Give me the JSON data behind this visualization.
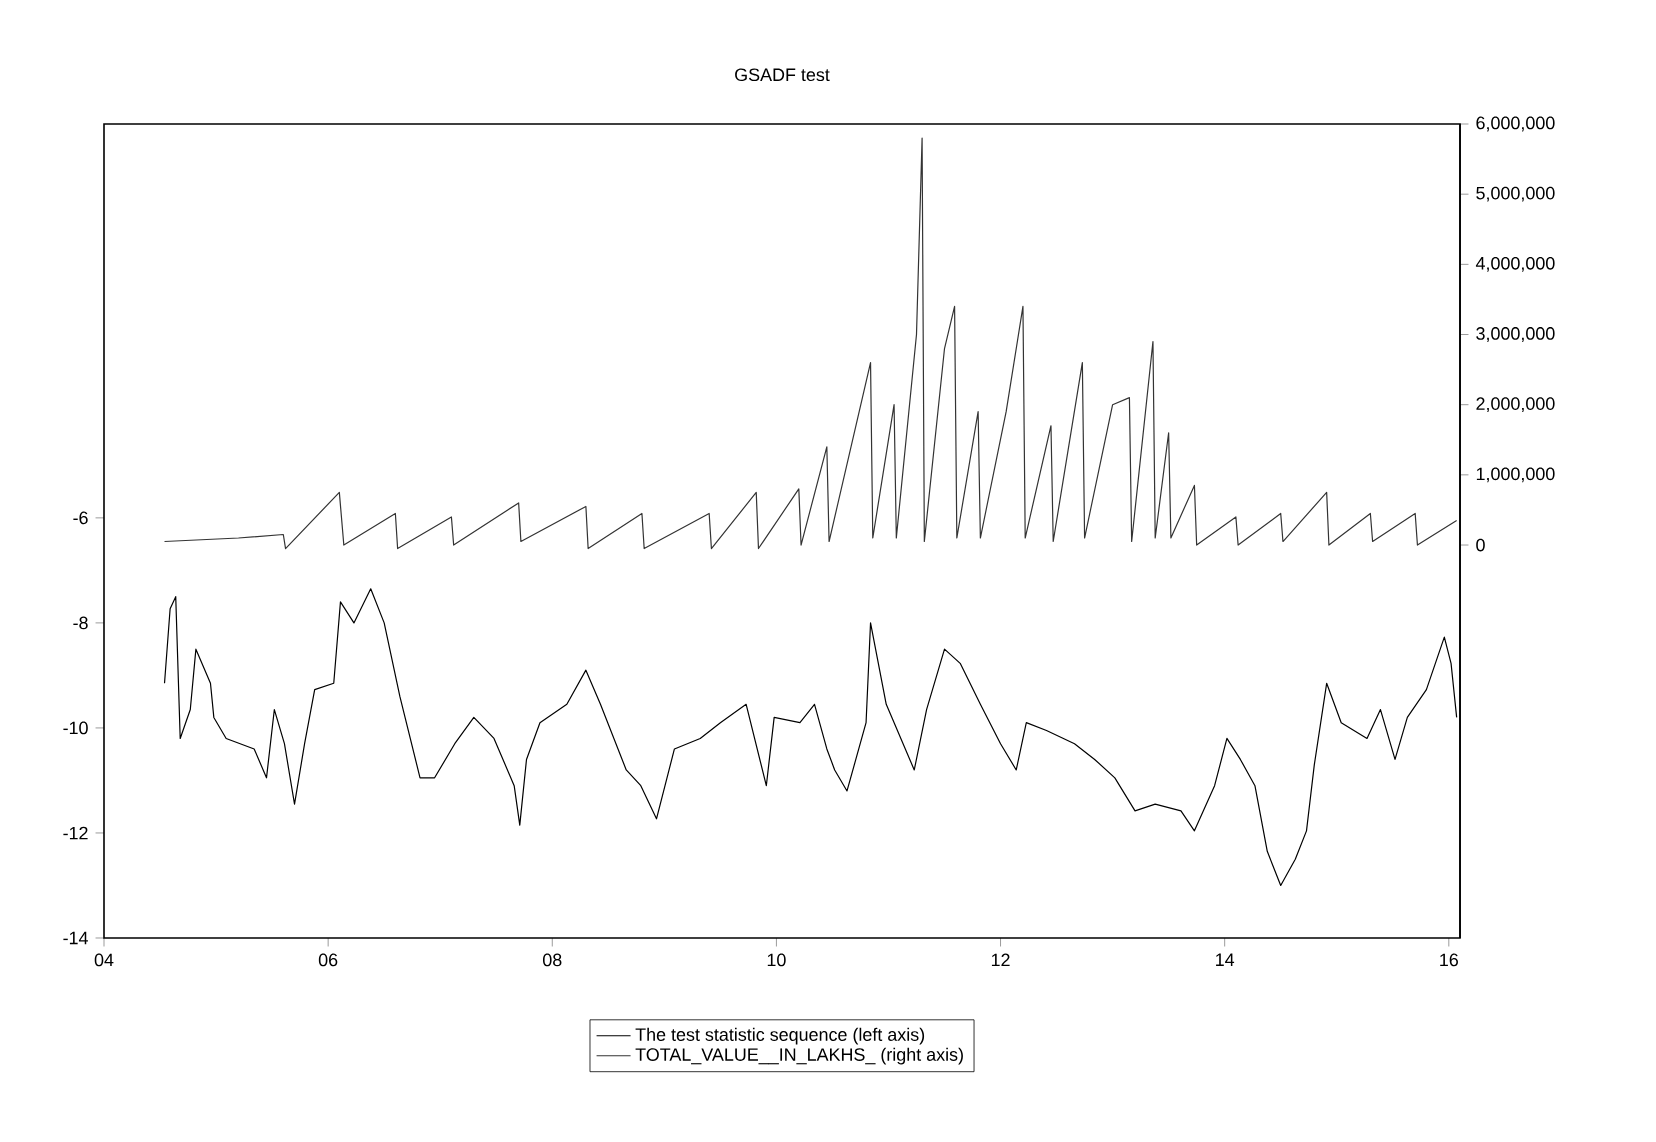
{
  "chart_data": {
    "type": "line",
    "title": "GSADF test",
    "legend": "bottom",
    "grid": false,
    "xlim": [
      2004,
      2016.1
    ],
    "xticks": [
      {
        "value": 2004,
        "label": "04"
      },
      {
        "value": 2006,
        "label": "06"
      },
      {
        "value": 2008,
        "label": "08"
      },
      {
        "value": 2010,
        "label": "10"
      },
      {
        "value": 2012,
        "label": "12"
      },
      {
        "value": 2014,
        "label": "14"
      },
      {
        "value": 2016,
        "label": "16"
      }
    ],
    "ylim": [
      -14,
      1.5
    ],
    "yticks": [
      -14,
      -12,
      -10,
      -8,
      -6
    ],
    "y2lim": [
      -5600000,
      6000000
    ],
    "y2ticks": [
      {
        "value": 0,
        "label": "0"
      },
      {
        "value": 1000000,
        "label": "1,000,000"
      },
      {
        "value": 2000000,
        "label": "2,000,000"
      },
      {
        "value": 3000000,
        "label": "3,000,000"
      },
      {
        "value": 4000000,
        "label": "4,000,000"
      },
      {
        "value": 5000000,
        "label": "5,000,000"
      },
      {
        "value": 6000000,
        "label": "6,000,000"
      }
    ],
    "series": [
      {
        "name": "The test statistic sequence (left axis)",
        "color": "#000000",
        "axis": "y",
        "x": [
          2004.54,
          2004.59,
          2004.64,
          2004.68,
          2004.77,
          2004.82,
          2004.95,
          2004.98,
          2005.09,
          2005.34,
          2005.45,
          2005.52,
          2005.61,
          2005.7,
          2005.79,
          2005.88,
          2006.05,
          2006.11,
          2006.23,
          2006.38,
          2006.5,
          2006.64,
          2006.82,
          2006.95,
          2007.13,
          2007.3,
          2007.48,
          2007.66,
          2007.71,
          2007.77,
          2007.89,
          2008.13,
          2008.3,
          2008.43,
          2008.66,
          2008.79,
          2008.93,
          2009.09,
          2009.32,
          2009.5,
          2009.73,
          2009.91,
          2009.98,
          2010.21,
          2010.34,
          2010.45,
          2010.52,
          2010.63,
          2010.8,
          2010.84,
          2010.98,
          2011.23,
          2011.34,
          2011.5,
          2011.64,
          2011.82,
          2012.0,
          2012.14,
          2012.23,
          2012.41,
          2012.66,
          2012.84,
          2013.02,
          2013.2,
          2013.38,
          2013.61,
          2013.73,
          2013.91,
          2014.02,
          2014.14,
          2014.27,
          2014.38,
          2014.5,
          2014.63,
          2014.73,
          2014.8,
          2014.91,
          2015.04,
          2015.27,
          2015.39,
          2015.52,
          2015.63,
          2015.8,
          2015.96,
          2016.02,
          2016.07
        ],
        "values": [
          -9.15,
          -7.73,
          -7.5,
          -10.2,
          -9.65,
          -8.5,
          -9.15,
          -9.8,
          -10.2,
          -10.4,
          -10.95,
          -9.65,
          -10.3,
          -11.45,
          -10.3,
          -9.27,
          -9.15,
          -7.6,
          -8.0,
          -7.35,
          -8.0,
          -9.4,
          -10.95,
          -10.95,
          -10.3,
          -9.8,
          -10.2,
          -11.1,
          -11.85,
          -10.6,
          -9.9,
          -9.55,
          -8.9,
          -9.55,
          -10.8,
          -11.1,
          -11.73,
          -10.4,
          -10.2,
          -9.9,
          -9.55,
          -11.1,
          -9.8,
          -9.9,
          -9.55,
          -10.4,
          -10.8,
          -11.2,
          -9.9,
          -8.0,
          -9.55,
          -10.8,
          -9.65,
          -8.5,
          -8.77,
          -9.55,
          -10.3,
          -10.8,
          -9.9,
          -10.05,
          -10.3,
          -10.6,
          -10.95,
          -11.58,
          -11.45,
          -11.58,
          -11.96,
          -11.1,
          -10.2,
          -10.6,
          -11.1,
          -12.35,
          -13.0,
          -12.5,
          -11.96,
          -10.7,
          -9.15,
          -9.9,
          -10.2,
          -9.65,
          -10.6,
          -9.8,
          -9.27,
          -8.27,
          -8.77,
          -9.8
        ]
      },
      {
        "name": "TOTAL_VALUE__IN_LAKHS_ (right axis)",
        "color": "#333333",
        "axis": "y2",
        "x": [
          2004.54,
          2005.2,
          2005.6,
          2005.62,
          2006.1,
          2006.14,
          2006.6,
          2006.62,
          2007.1,
          2007.12,
          2007.7,
          2007.72,
          2008.3,
          2008.32,
          2008.8,
          2008.82,
          2009.4,
          2009.42,
          2009.82,
          2009.84,
          2010.2,
          2010.22,
          2010.45,
          2010.47,
          2010.84,
          2010.86,
          2011.05,
          2011.07,
          2011.25,
          2011.3,
          2011.32,
          2011.5,
          2011.59,
          2011.61,
          2011.8,
          2011.82,
          2012.05,
          2012.2,
          2012.22,
          2012.45,
          2012.47,
          2012.73,
          2012.75,
          2013.0,
          2013.15,
          2013.17,
          2013.36,
          2013.38,
          2013.5,
          2013.52,
          2013.73,
          2013.75,
          2014.1,
          2014.12,
          2014.5,
          2014.52,
          2014.91,
          2014.93,
          2015.3,
          2015.32,
          2015.7,
          2015.72,
          2016.07
        ],
        "values": [
          50000,
          100000,
          150000,
          -50000,
          750000,
          0,
          450000,
          -50000,
          400000,
          0,
          600000,
          50000,
          550000,
          -50000,
          450000,
          -50000,
          450000,
          -50000,
          750000,
          -50000,
          800000,
          0,
          1400000,
          50000,
          2600000,
          100000,
          2000000,
          100000,
          3000000,
          5800000,
          50000,
          2800000,
          3400000,
          100000,
          1900000,
          100000,
          1900000,
          3400000,
          100000,
          1700000,
          50000,
          2600000,
          100000,
          2000000,
          2100000,
          50000,
          2900000,
          100000,
          1600000,
          100000,
          850000,
          0,
          400000,
          0,
          450000,
          50000,
          750000,
          0,
          450000,
          50000,
          450000,
          0,
          350000
        ]
      }
    ]
  }
}
